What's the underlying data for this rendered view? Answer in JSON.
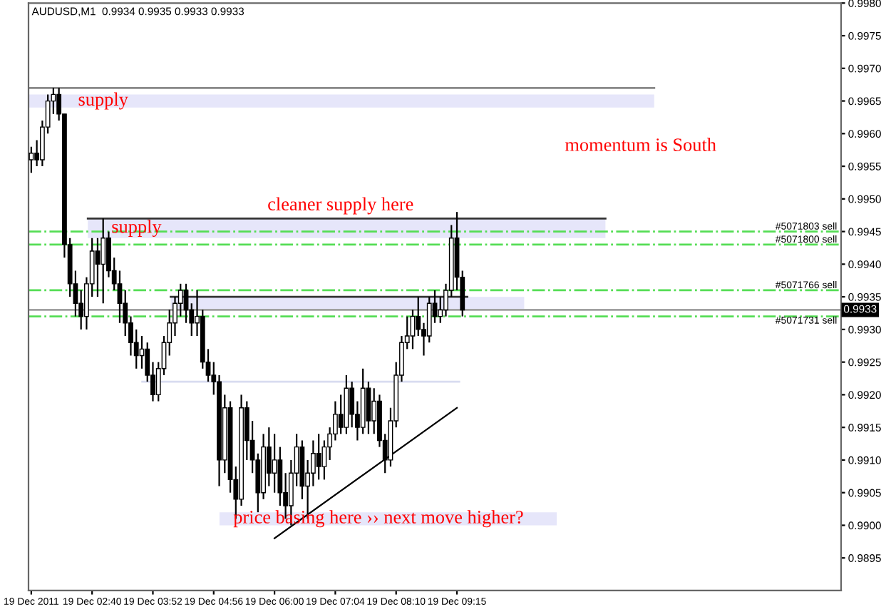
{
  "chart_data": {
    "type": "candlestick",
    "title": "AUDUSD,M1  0.9934 0.9935 0.9933 0.9933",
    "categories": [
      "19 Dec 2011",
      null,
      null,
      null,
      null,
      null,
      null,
      null,
      null,
      null,
      null,
      "19 Dec 02:40",
      null,
      null,
      null,
      null,
      null,
      null,
      null,
      null,
      null,
      null,
      "19 Dec 03:52",
      null,
      null,
      null,
      null,
      null,
      null,
      null,
      null,
      null,
      null,
      "19 Dec 04:56",
      null,
      null,
      null,
      null,
      null,
      null,
      null,
      null,
      null,
      null,
      "19 Dec 06:00",
      null,
      null,
      null,
      null,
      null,
      null,
      null,
      null,
      null,
      null,
      "19 Dec 07:04",
      null,
      null,
      null,
      null,
      null,
      null,
      null,
      null,
      null,
      null,
      "19 Dec 08:10",
      null,
      null,
      null,
      null,
      null,
      null,
      null,
      null,
      null,
      null,
      "19 Dec 09:15",
      null,
      null,
      null,
      null,
      null,
      null,
      null,
      null,
      null,
      null,
      null,
      null,
      null,
      null,
      null,
      null,
      null,
      null,
      null,
      null,
      null,
      null,
      null,
      null,
      null,
      null,
      null,
      null,
      null,
      null,
      null,
      null,
      null,
      null,
      null,
      null,
      null,
      null,
      null,
      null,
      null,
      null,
      null,
      null,
      null,
      null,
      null,
      null,
      null,
      null,
      null,
      null,
      null,
      null,
      null,
      null,
      null,
      null,
      null,
      null,
      null,
      null,
      null,
      null,
      null,
      null,
      null,
      null,
      null
    ],
    "ohlc": [
      [
        0.9956,
        0.9958,
        0.9954,
        0.9957
      ],
      [
        0.9957,
        0.9959,
        0.9955,
        0.9956
      ],
      [
        0.9956,
        0.9962,
        0.9955,
        0.9961
      ],
      [
        0.9961,
        0.9966,
        0.996,
        0.9965
      ],
      [
        0.9965,
        0.9967,
        0.9963,
        0.9966
      ],
      [
        0.9966,
        0.9967,
        0.9962,
        0.9963
      ],
      [
        0.9963,
        0.9963,
        0.9941,
        0.9943
      ],
      [
        0.9943,
        0.9944,
        0.9935,
        0.9937
      ],
      [
        0.9937,
        0.9939,
        0.9932,
        0.9934
      ],
      [
        0.9934,
        0.9936,
        0.993,
        0.9932
      ],
      [
        0.9932,
        0.9938,
        0.993,
        0.9937
      ],
      [
        0.9937,
        0.9944,
        0.9935,
        0.9942
      ],
      [
        0.9942,
        0.9944,
        0.9935,
        0.994
      ],
      [
        0.994,
        0.9947,
        0.9934,
        0.9944
      ],
      [
        0.9944,
        0.9945,
        0.9938,
        0.9939
      ],
      [
        0.9939,
        0.9941,
        0.9936,
        0.9937
      ],
      [
        0.9937,
        0.9939,
        0.9931,
        0.9934
      ],
      [
        0.9934,
        0.9936,
        0.9929,
        0.9931
      ],
      [
        0.9931,
        0.9932,
        0.9926,
        0.9928
      ],
      [
        0.9928,
        0.993,
        0.9924,
        0.9926
      ],
      [
        0.9926,
        0.9929,
        0.9924,
        0.9927
      ],
      [
        0.9927,
        0.9928,
        0.9922,
        0.9923
      ],
      [
        0.9923,
        0.9925,
        0.9919,
        0.992
      ],
      [
        0.992,
        0.9925,
        0.9919,
        0.9924
      ],
      [
        0.9924,
        0.9929,
        0.9923,
        0.9928
      ],
      [
        0.9928,
        0.9933,
        0.9926,
        0.9931
      ],
      [
        0.9931,
        0.9935,
        0.9929,
        0.9934
      ],
      [
        0.9934,
        0.9937,
        0.9932,
        0.9936
      ],
      [
        0.9936,
        0.9937,
        0.9931,
        0.9933
      ],
      [
        0.9933,
        0.9934,
        0.9929,
        0.9931
      ],
      [
        0.9931,
        0.9936,
        0.9929,
        0.9932
      ],
      [
        0.9932,
        0.9933,
        0.9924,
        0.9925
      ],
      [
        0.9925,
        0.9927,
        0.9922,
        0.9923
      ],
      [
        0.9923,
        0.9925,
        0.992,
        0.9922
      ],
      [
        0.9922,
        0.9923,
        0.9906,
        0.991
      ],
      [
        0.991,
        0.992,
        0.9908,
        0.9918
      ],
      [
        0.9918,
        0.9919,
        0.9905,
        0.9907
      ],
      [
        0.9907,
        0.9909,
        0.9901,
        0.9904
      ],
      [
        0.9904,
        0.992,
        0.9903,
        0.9918
      ],
      [
        0.9918,
        0.9919,
        0.991,
        0.9913
      ],
      [
        0.9913,
        0.9916,
        0.9908,
        0.991
      ],
      [
        0.991,
        0.9911,
        0.9902,
        0.9905
      ],
      [
        0.9905,
        0.9914,
        0.9904,
        0.9912
      ],
      [
        0.9912,
        0.9915,
        0.9906,
        0.9908
      ],
      [
        0.9908,
        0.9914,
        0.9905,
        0.991
      ],
      [
        0.991,
        0.9912,
        0.9903,
        0.9905
      ],
      [
        0.9905,
        0.9908,
        0.9901,
        0.9903
      ],
      [
        0.9903,
        0.991,
        0.99,
        0.9908
      ],
      [
        0.9908,
        0.9914,
        0.9906,
        0.9912
      ],
      [
        0.9912,
        0.9913,
        0.9904,
        0.9906
      ],
      [
        0.9906,
        0.991,
        0.9901,
        0.9908
      ],
      [
        0.9908,
        0.9913,
        0.9906,
        0.9911
      ],
      [
        0.9911,
        0.9914,
        0.9907,
        0.9909
      ],
      [
        0.9909,
        0.9913,
        0.9907,
        0.9912
      ],
      [
        0.9912,
        0.9915,
        0.991,
        0.9914
      ],
      [
        0.9914,
        0.9919,
        0.9913,
        0.9917
      ],
      [
        0.9917,
        0.992,
        0.9914,
        0.9915
      ],
      [
        0.9915,
        0.9923,
        0.9914,
        0.9921
      ],
      [
        0.9921,
        0.9922,
        0.9915,
        0.9917
      ],
      [
        0.9917,
        0.9919,
        0.9913,
        0.9915
      ],
      [
        0.9915,
        0.9924,
        0.9914,
        0.9921
      ],
      [
        0.9921,
        0.9922,
        0.9914,
        0.9916
      ],
      [
        0.9916,
        0.9921,
        0.9914,
        0.9919
      ],
      [
        0.9919,
        0.992,
        0.9912,
        0.9913
      ],
      [
        0.9913,
        0.9914,
        0.9908,
        0.991
      ],
      [
        0.991,
        0.9918,
        0.9909,
        0.9916
      ],
      [
        0.9916,
        0.9925,
        0.9915,
        0.9923
      ],
      [
        0.9923,
        0.9929,
        0.9922,
        0.9928
      ],
      [
        0.9928,
        0.9932,
        0.9927,
        0.9929
      ],
      [
        0.9929,
        0.9933,
        0.9927,
        0.9932
      ],
      [
        0.9932,
        0.9935,
        0.9929,
        0.993
      ],
      [
        0.993,
        0.9931,
        0.9926,
        0.9929
      ],
      [
        0.9929,
        0.9935,
        0.9928,
        0.9934
      ],
      [
        0.9934,
        0.9936,
        0.9931,
        0.9932
      ],
      [
        0.9932,
        0.9935,
        0.9931,
        0.9933
      ],
      [
        0.9933,
        0.9937,
        0.9932,
        0.9936
      ],
      [
        0.9936,
        0.9946,
        0.9935,
        0.9944
      ],
      [
        0.9944,
        0.9948,
        0.9936,
        0.9938
      ],
      [
        0.9938,
        0.9939,
        0.9932,
        0.9933
      ],
      null,
      null,
      null,
      null,
      null,
      null,
      null,
      null,
      null,
      null,
      null,
      null,
      null,
      null,
      null,
      null,
      null,
      null,
      null,
      null,
      null,
      null,
      null,
      null,
      null,
      null,
      null,
      null,
      null,
      null,
      null,
      null,
      null,
      null,
      null,
      null,
      null,
      null,
      null,
      null,
      null,
      null,
      null,
      null,
      null,
      null,
      null,
      null,
      null,
      null,
      null,
      null,
      null,
      null,
      null,
      null,
      null,
      null,
      null,
      null,
      null,
      null,
      null,
      null,
      null,
      null,
      null,
      null
    ],
    "color": "#000000",
    "series": [
      {
        "type": "line",
        "color": "#000000",
        "values": [
          null,
          null,
          null,
          null,
          null,
          null,
          null,
          null,
          null,
          null,
          null,
          null,
          null,
          null,
          null,
          null,
          null,
          null,
          null,
          null,
          null,
          null,
          null,
          null,
          null,
          null,
          null,
          null,
          null,
          null,
          null,
          null,
          null,
          null,
          null,
          null,
          null,
          null,
          null,
          null,
          null,
          null,
          null,
          null,
          0.9898,
          null,
          null,
          null,
          null,
          null,
          null,
          null,
          null,
          null,
          null,
          null,
          null,
          null,
          null,
          null,
          null,
          null,
          null,
          null,
          null,
          null,
          null,
          null,
          null,
          null,
          null,
          null,
          null,
          null,
          null,
          null,
          null,
          0.9918,
          null,
          null,
          null,
          null,
          null,
          null,
          null,
          null,
          null,
          null,
          null,
          null,
          null,
          null,
          null,
          null,
          null,
          null,
          null,
          null,
          null,
          null,
          null,
          null,
          null,
          null,
          null,
          null,
          null,
          null,
          null,
          null,
          null,
          null,
          null,
          null,
          null,
          null,
          null,
          null,
          null,
          null,
          null,
          null,
          null,
          null,
          null,
          null,
          null,
          null,
          null,
          null,
          null,
          null,
          null,
          null,
          null,
          null,
          null,
          null,
          null,
          null,
          null,
          null,
          null,
          null,
          null,
          null,
          null
        ]
      }
    ],
    "ylim": [
      0.989,
      0.998
    ],
    "yticks": [
      {
        "value": 0.9895,
        "label": "0.9895"
      },
      {
        "value": 0.99,
        "label": "0.9900"
      },
      {
        "value": 0.9905,
        "label": "0.9905"
      },
      {
        "value": 0.991,
        "label": "0.9910"
      },
      {
        "value": 0.9915,
        "label": "0.9915"
      },
      {
        "value": 0.992,
        "label": "0.9920"
      },
      {
        "value": 0.9925,
        "label": "0.9925"
      },
      {
        "value": 0.993,
        "label": "0.9930"
      },
      {
        "value": 0.9935,
        "label": "0.9935"
      },
      {
        "value": 0.994,
        "label": "0.9940"
      },
      {
        "value": 0.9945,
        "label": "0.9945"
      },
      {
        "value": 0.995,
        "label": "0.9950"
      },
      {
        "value": 0.9955,
        "label": "0.9955"
      },
      {
        "value": 0.996,
        "label": "0.9960"
      },
      {
        "value": 0.9965,
        "label": "0.9965"
      },
      {
        "value": 0.997,
        "label": "0.9970"
      },
      {
        "value": 0.9975,
        "label": "0.9975"
      },
      {
        "value": 0.998,
        "label": "0.9980"
      }
    ],
    "ref_lines": [
      {
        "axis": "y",
        "value": 0.9967,
        "color": "#888888",
        "line_style": "solid"
      },
      {
        "axis": "y",
        "value": 0.9947,
        "color": "#333333",
        "line_style": "solid"
      },
      {
        "axis": "y",
        "value": 0.9935,
        "color": "#333333",
        "line_style": "solid"
      },
      {
        "axis": "y",
        "value": 0.9922,
        "color": "#d8dcf0",
        "line_style": "solid"
      },
      {
        "axis": "y",
        "value": 0.9945,
        "label": "#5071803 sell",
        "color": "#55dd55",
        "line_style": "dashdot"
      },
      {
        "axis": "y",
        "value": 0.9943,
        "label": "#5071800 sell",
        "color": "#55dd55",
        "line_style": "dashdot"
      },
      {
        "axis": "y",
        "value": 0.9936,
        "label": "#5071766 sell",
        "color": "#55dd55",
        "line_style": "dashdot"
      },
      {
        "axis": "y",
        "value": 0.9932,
        "label": "#5071731 sell",
        "color": "#55dd55",
        "line_style": "dashdot"
      },
      {
        "axis": "y",
        "value": 0.9933,
        "label": "0.9933",
        "color": "#a0a0a0",
        "line_style": "solid"
      }
    ],
    "bands": [
      {
        "axis": "y",
        "from": 0.9964,
        "to": 0.9966,
        "label": "supply",
        "color": "#e6e6fa"
      },
      {
        "axis": "y",
        "from": 0.9944,
        "to": 0.9947,
        "label": "supply",
        "color": "#e6e6fa"
      },
      {
        "axis": "y",
        "from": 0.9933,
        "to": 0.9935,
        "color": "#e6e6fa"
      },
      {
        "axis": "y",
        "from": 0.99,
        "to": 0.9902,
        "label": "price basing here ›› next move higher?",
        "color": "#e6e6fa"
      }
    ],
    "annotations": [
      "cleaner supply here",
      "momentum is South"
    ]
  }
}
